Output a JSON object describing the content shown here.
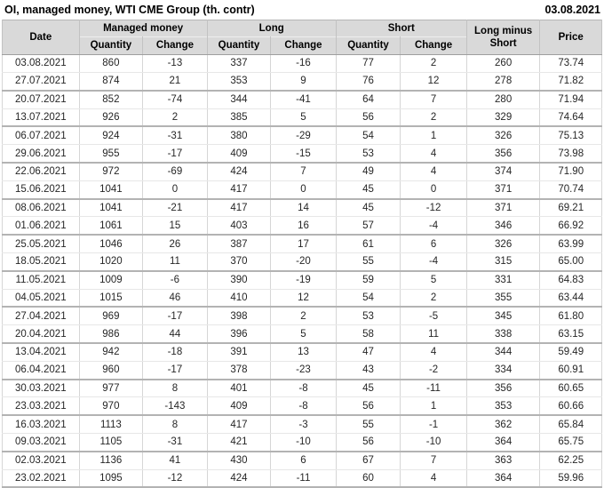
{
  "title": "OI, managed money, WTI CME Group (th. contr)",
  "report_date": "03.08.2021",
  "colors": {
    "negative": "#cc0000",
    "positive": "#008000",
    "header_bg": "#d9d9d9"
  },
  "chart_data": {
    "type": "table",
    "title": "OI, managed money, WTI CME Group (th. contr)",
    "report_date": "03.08.2021",
    "column_groups": [
      {
        "label": "Managed money"
      },
      {
        "label": "Long"
      },
      {
        "label": "Short"
      }
    ],
    "columns": [
      {
        "key": "date",
        "label": "Date",
        "type": "date"
      },
      {
        "key": "mm_quantity",
        "label": "Quantity",
        "type": "number"
      },
      {
        "key": "mm_change",
        "label": "Change",
        "type": "change"
      },
      {
        "key": "long_quantity",
        "label": "Quantity",
        "type": "number"
      },
      {
        "key": "long_change",
        "label": "Change",
        "type": "change"
      },
      {
        "key": "short_quantity",
        "label": "Quantity",
        "type": "number"
      },
      {
        "key": "short_change",
        "label": "Change",
        "type": "change"
      },
      {
        "key": "long_minus_short",
        "label": "Long minus Short",
        "type": "number"
      },
      {
        "key": "price",
        "label": "Price",
        "type": "price"
      }
    ],
    "rows": [
      [
        "03.08.2021",
        "860",
        "-13",
        "337",
        "-16",
        "77",
        "2",
        "260",
        "73.74"
      ],
      [
        "27.07.2021",
        "874",
        "21",
        "353",
        "9",
        "76",
        "12",
        "278",
        "71.82"
      ],
      [
        "20.07.2021",
        "852",
        "-74",
        "344",
        "-41",
        "64",
        "7",
        "280",
        "71.94"
      ],
      [
        "13.07.2021",
        "926",
        "2",
        "385",
        "5",
        "56",
        "2",
        "329",
        "74.64"
      ],
      [
        "06.07.2021",
        "924",
        "-31",
        "380",
        "-29",
        "54",
        "1",
        "326",
        "75.13"
      ],
      [
        "29.06.2021",
        "955",
        "-17",
        "409",
        "-15",
        "53",
        "4",
        "356",
        "73.98"
      ],
      [
        "22.06.2021",
        "972",
        "-69",
        "424",
        "7",
        "49",
        "4",
        "374",
        "71.90"
      ],
      [
        "15.06.2021",
        "1041",
        "0",
        "417",
        "0",
        "45",
        "0",
        "371",
        "70.74"
      ],
      [
        "08.06.2021",
        "1041",
        "-21",
        "417",
        "14",
        "45",
        "-12",
        "371",
        "69.21"
      ],
      [
        "01.06.2021",
        "1061",
        "15",
        "403",
        "16",
        "57",
        "-4",
        "346",
        "66.92"
      ],
      [
        "25.05.2021",
        "1046",
        "26",
        "387",
        "17",
        "61",
        "6",
        "326",
        "63.99"
      ],
      [
        "18.05.2021",
        "1020",
        "11",
        "370",
        "-20",
        "55",
        "-4",
        "315",
        "65.00"
      ],
      [
        "11.05.2021",
        "1009",
        "-6",
        "390",
        "-19",
        "59",
        "5",
        "331",
        "64.83"
      ],
      [
        "04.05.2021",
        "1015",
        "46",
        "410",
        "12",
        "54",
        "2",
        "355",
        "63.44"
      ],
      [
        "27.04.2021",
        "969",
        "-17",
        "398",
        "2",
        "53",
        "-5",
        "345",
        "61.80"
      ],
      [
        "20.04.2021",
        "986",
        "44",
        "396",
        "5",
        "58",
        "11",
        "338",
        "63.15"
      ],
      [
        "13.04.2021",
        "942",
        "-18",
        "391",
        "13",
        "47",
        "4",
        "344",
        "59.49"
      ],
      [
        "06.04.2021",
        "960",
        "-17",
        "378",
        "-23",
        "43",
        "-2",
        "334",
        "60.91"
      ],
      [
        "30.03.2021",
        "977",
        "8",
        "401",
        "-8",
        "45",
        "-11",
        "356",
        "60.65"
      ],
      [
        "23.03.2021",
        "970",
        "-143",
        "409",
        "-8",
        "56",
        "1",
        "353",
        "60.66"
      ],
      [
        "16.03.2021",
        "1113",
        "8",
        "417",
        "-3",
        "55",
        "-1",
        "362",
        "65.84"
      ],
      [
        "09.03.2021",
        "1105",
        "-31",
        "421",
        "-10",
        "56",
        "-10",
        "364",
        "65.75"
      ],
      [
        "02.03.2021",
        "1136",
        "41",
        "430",
        "6",
        "67",
        "7",
        "363",
        "62.25"
      ],
      [
        "23.02.2021",
        "1095",
        "-12",
        "424",
        "-11",
        "60",
        "4",
        "364",
        "59.96"
      ]
    ]
  }
}
